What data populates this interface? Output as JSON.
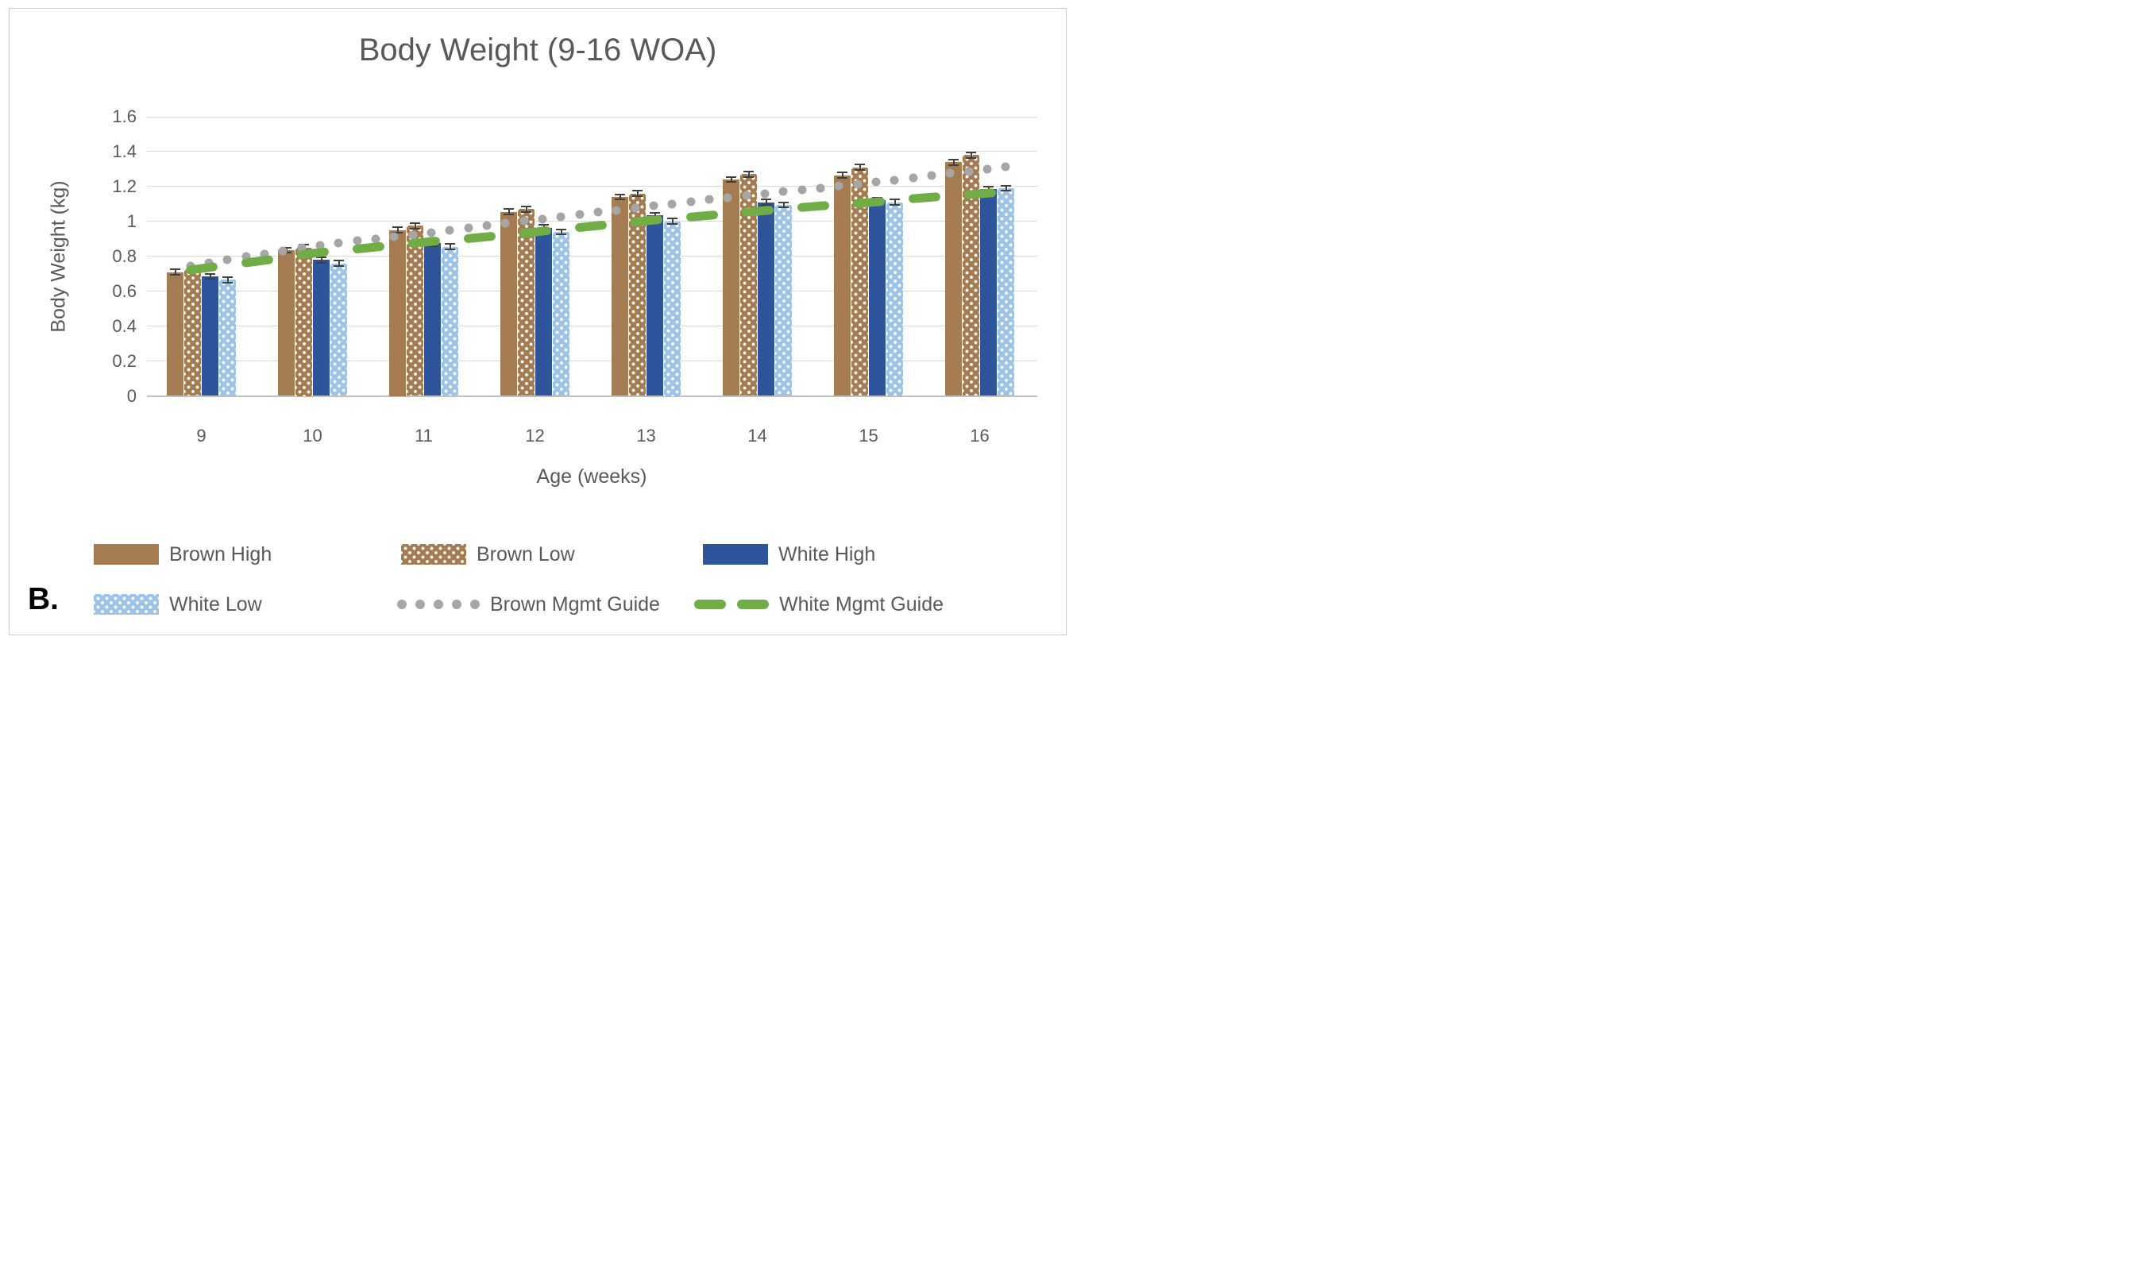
{
  "figure_label": "B.",
  "chart_data": {
    "type": "bar",
    "title": "Body Weight (9-16 WOA)",
    "xlabel": "Age (weeks)",
    "ylabel": "Body Weight (kg)",
    "categories": [
      9,
      10,
      11,
      12,
      13,
      14,
      15,
      16
    ],
    "ylim": [
      0,
      1.6
    ],
    "ytick_labels": [
      "0",
      "0.2",
      "0.4",
      "0.6",
      "0.8",
      "1",
      "1.2",
      "1.4",
      "1.6"
    ],
    "grid": true,
    "legend_position": "bottom",
    "error_bar_kg": 0.02,
    "series": [
      {
        "name": "Brown High",
        "type": "bar",
        "pattern": "solid",
        "color": "#A57C52",
        "values": [
          0.71,
          0.835,
          0.95,
          1.055,
          1.14,
          1.24,
          1.265,
          1.34
        ]
      },
      {
        "name": "Brown Low",
        "type": "bar",
        "pattern": "dotted",
        "color": "#A57C52",
        "dot_color": "#FFFFFF",
        "values": [
          0.725,
          0.85,
          0.975,
          1.07,
          1.16,
          1.27,
          1.31,
          1.38
        ]
      },
      {
        "name": "White High",
        "type": "bar",
        "pattern": "solid",
        "color": "#2E549B",
        "values": [
          0.685,
          0.78,
          0.875,
          0.965,
          1.035,
          1.11,
          1.12,
          1.185
        ]
      },
      {
        "name": "White Low",
        "type": "bar",
        "pattern": "dotted",
        "color": "#9DC3E6",
        "dot_color": "#FFFFFF",
        "values": [
          0.665,
          0.76,
          0.855,
          0.94,
          1.0,
          1.095,
          1.11,
          1.19
        ]
      },
      {
        "name": "Brown Mgmt Guide",
        "type": "line",
        "pattern": "dotted",
        "color": "#A6A6A6",
        "values": [
          0.755,
          0.86,
          0.93,
          1.01,
          1.085,
          1.155,
          1.22,
          1.295
        ]
      },
      {
        "name": "White Mgmt Guide",
        "type": "line",
        "pattern": "dashed",
        "color": "#70AD47",
        "values": [
          0.73,
          0.815,
          0.88,
          0.94,
          1.005,
          1.06,
          1.11,
          1.16
        ]
      }
    ]
  },
  "colors": {
    "text": "#595959",
    "gridline": "#D9D9D9",
    "axis_line": "#BFBFBF",
    "error_bar": "#404040",
    "border": "#C9CBCC",
    "background": "#FFFFFF",
    "figure_label": "#000000"
  }
}
